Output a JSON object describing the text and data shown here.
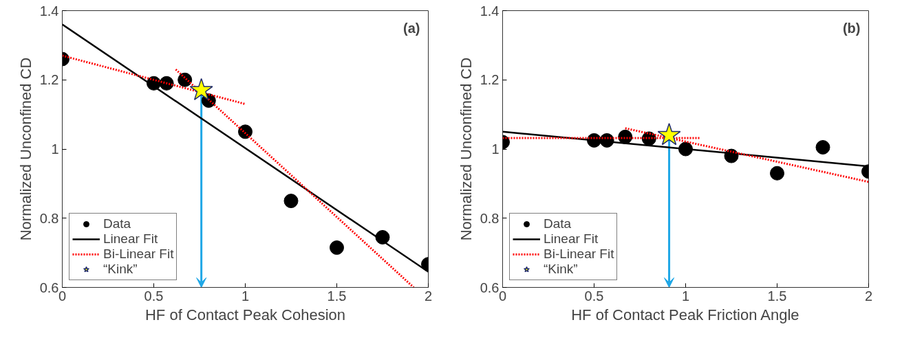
{
  "chart_data": [
    {
      "type": "scatter",
      "xlabel": "HF of Contact Peak Cohesion",
      "ylabel": "Normalized Unconfined CD",
      "annotations": [
        "(a)"
      ],
      "xlim": [
        0,
        2
      ],
      "ylim": [
        0.6,
        1.4
      ],
      "xticks": [
        0,
        0.5,
        1,
        1.5,
        2
      ],
      "yticks": [
        0.6,
        0.8,
        1,
        1.2,
        1.4
      ],
      "grid": false,
      "legend": "bottom left",
      "series": [
        {
          "name": "Data",
          "marker": "circle",
          "color": "#000000",
          "x": [
            0,
            0.5,
            0.57,
            0.67,
            0.8,
            1.0,
            1.25,
            1.5,
            1.75,
            2.0
          ],
          "values": [
            1.26,
            1.19,
            1.19,
            1.2,
            1.14,
            1.05,
            0.85,
            0.715,
            0.745,
            0.667
          ]
        },
        {
          "name": "Linear Fit",
          "type": "line",
          "line_style": "solid",
          "color": "#000000",
          "x": [
            0,
            2
          ],
          "values": [
            1.36,
            0.645
          ]
        },
        {
          "name": "Bi-Linear Fit",
          "type": "line",
          "line_style": "dotted",
          "color": "#ff0000",
          "x": [
            0,
            1.0
          ],
          "values": [
            1.27,
            1.13
          ]
        },
        {
          "type": "line",
          "line_style": "dotted",
          "color": "#ff0000",
          "x": [
            0.62,
            1.92
          ],
          "values": [
            1.23,
            0.6
          ]
        },
        {
          "name": "“Kink”",
          "type": "scatter",
          "marker": "star",
          "color": "#ffff00",
          "x": [
            0.76
          ],
          "values": [
            1.17
          ]
        }
      ]
    },
    {
      "type": "scatter",
      "xlabel": "HF of Contact Peak Friction Angle",
      "ylabel": "Normalized Unconfined CD",
      "annotations": [
        "(b)"
      ],
      "xlim": [
        0,
        2
      ],
      "ylim": [
        0.6,
        1.4
      ],
      "xticks": [
        0,
        0.5,
        1,
        1.5,
        2
      ],
      "yticks": [
        0.6,
        0.8,
        1,
        1.2,
        1.4
      ],
      "grid": false,
      "legend": "bottom left",
      "series": [
        {
          "name": "Data",
          "marker": "circle",
          "color": "#000000",
          "x": [
            0,
            0.5,
            0.57,
            0.67,
            0.8,
            1.0,
            1.25,
            1.5,
            1.75,
            2.0
          ],
          "values": [
            1.02,
            1.025,
            1.025,
            1.035,
            1.03,
            1.0,
            0.98,
            0.93,
            1.005,
            0.935
          ]
        },
        {
          "name": "Linear Fit",
          "type": "line",
          "line_style": "solid",
          "color": "#000000",
          "x": [
            0,
            2
          ],
          "values": [
            1.05,
            0.95
          ]
        },
        {
          "name": "Bi-Linear Fit",
          "type": "line",
          "line_style": "dotted",
          "color": "#ff0000",
          "x": [
            0,
            1.08
          ],
          "values": [
            1.032,
            1.032
          ]
        },
        {
          "type": "line",
          "line_style": "dotted",
          "color": "#ff0000",
          "x": [
            0.67,
            2.0
          ],
          "values": [
            1.06,
            0.905
          ]
        },
        {
          "name": "“Kink”",
          "type": "scatter",
          "marker": "star",
          "color": "#ffff00",
          "x": [
            0.91
          ],
          "values": [
            1.04
          ]
        }
      ]
    }
  ]
}
